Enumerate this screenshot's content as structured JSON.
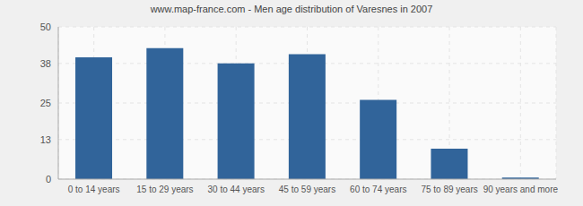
{
  "chart_data": {
    "type": "bar",
    "title": "www.map-france.com - Men age distribution of Varesnes in 2007",
    "categories": [
      "0 to 14 years",
      "15 to 29 years",
      "30 to 44 years",
      "45 to 59 years",
      "60 to 74 years",
      "75 to 89 years",
      "90 years and more"
    ],
    "values": [
      40,
      43,
      38,
      41,
      26,
      10,
      0.5
    ],
    "color": "#31649a",
    "ylim": [
      0,
      50
    ],
    "yticks": [
      0,
      13,
      25,
      38,
      50
    ],
    "grid": true
  }
}
